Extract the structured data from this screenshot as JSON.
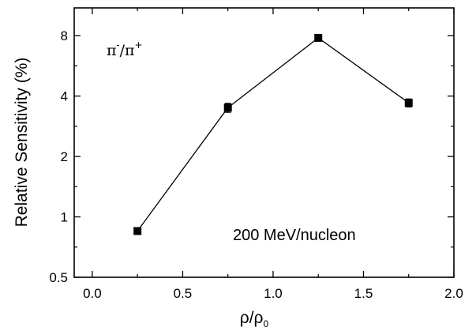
{
  "chart_data": {
    "type": "line",
    "title": "",
    "xlabel": "ρ/ρ",
    "xlabel_sub": "0",
    "ylabel": "Relative Sensitivity (%)",
    "xlim": [
      -0.1,
      2.0
    ],
    "ylim": [
      0.5,
      11
    ],
    "yscale": "log2",
    "x_ticks": [
      0.0,
      0.5,
      1.0,
      1.5,
      2.0
    ],
    "x_tick_labels": [
      "0.0",
      "0.5",
      "1.0",
      "1.5",
      "2.0"
    ],
    "y_ticks": [
      0.5,
      1,
      2,
      4,
      8
    ],
    "y_tick_labels": [
      "0.5",
      "1",
      "2",
      "4",
      "8"
    ],
    "grid": false,
    "series": [
      {
        "x": [
          0.25,
          0.75,
          1.25,
          1.75
        ],
        "y": [
          0.85,
          3.5,
          7.8,
          3.7
        ],
        "err": [
          0.02,
          0.18,
          0.12,
          0.17
        ],
        "marker": "square",
        "color": "#000000"
      }
    ],
    "annotations": {
      "ratio_base1": "π",
      "ratio_sup1": "-",
      "ratio_mid": "/π",
      "ratio_sup2": "+",
      "energy": "200 MeV/nucleon"
    }
  }
}
